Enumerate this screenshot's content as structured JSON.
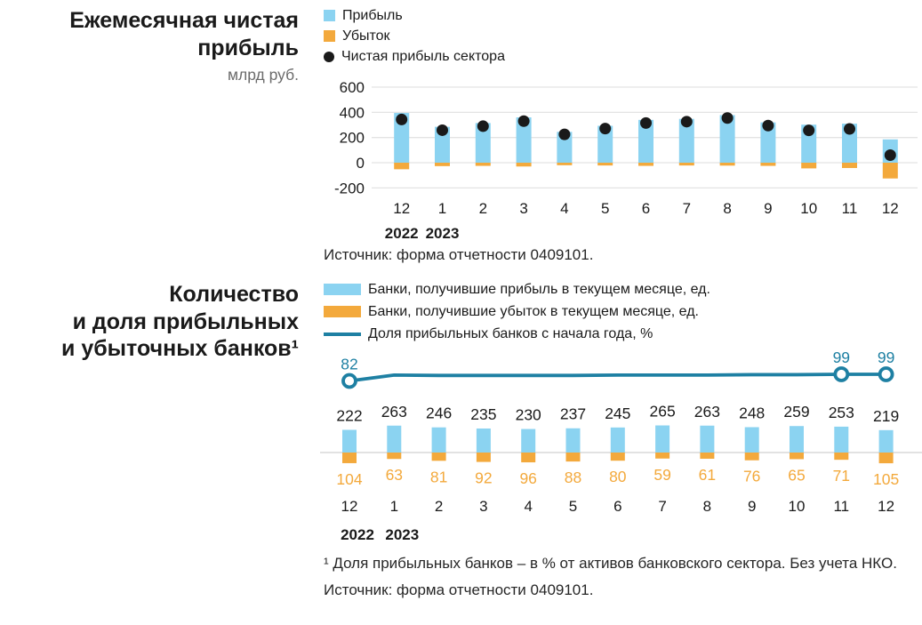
{
  "page": {
    "background": "#FFFFFF"
  },
  "colors": {
    "profit_blue": "#8BD3F1",
    "loss_orange": "#F3A93C",
    "share_line_teal": "#1E80A3",
    "net_dot_black": "#1A1A1A",
    "grid_gray": "#E3E3E3",
    "axis_gray": "#D9D9D9",
    "title_black": "#1A1A1A",
    "muted_gray": "#6B6B6B",
    "text_dark": "#262626"
  },
  "top_section": {
    "title_lines": [
      "Ежемесячная чистая",
      "прибыль"
    ],
    "unit": "млрд руб.",
    "source": "Источник: форма отчетности 0409101."
  },
  "bottom_section": {
    "title_lines": [
      "Количество",
      "и доля прибыльных",
      "и убыточных банков¹"
    ],
    "footnote": "¹ Доля прибыльных банков – в % от активов банковского сектора. Без учета НКО.",
    "source": "Источник: форма отчетности 0409101."
  },
  "chart_data": [
    {
      "id": "monthly-net-profit",
      "type": "bar",
      "title": "Ежемесячная чистая прибыль",
      "ylabel": "млрд руб.",
      "xlabel": "",
      "categories": [
        "12",
        "1",
        "2",
        "3",
        "4",
        "5",
        "6",
        "7",
        "8",
        "9",
        "10",
        "11",
        "12"
      ],
      "year_row": [
        {
          "index": 0,
          "label": "2022"
        },
        {
          "index": 1,
          "label": "2023"
        }
      ],
      "y_ticks": [
        600,
        400,
        200,
        0,
        -200
      ],
      "ylim": [
        -280,
        640
      ],
      "grid": true,
      "legend_position": "top-left",
      "series": [
        {
          "name": "Прибыль",
          "type": "bar",
          "color_key": "profit_blue",
          "values": [
            395,
            285,
            315,
            360,
            245,
            293,
            340,
            348,
            378,
            320,
            302,
            310,
            185
          ]
        },
        {
          "name": "Убыток",
          "type": "bar",
          "color_key": "loss_orange",
          "values": [
            -52,
            -27,
            -25,
            -30,
            -20,
            -22,
            -25,
            -22,
            -23,
            -25,
            -45,
            -42,
            -125
          ]
        },
        {
          "name": "Чистая прибыль сектора",
          "type": "dot",
          "color_key": "net_dot_black",
          "values": [
            343,
            258,
            290,
            330,
            225,
            271,
            315,
            326,
            355,
            295,
            257,
            268,
            60
          ]
        }
      ],
      "source": "Источник: форма отчетности 0409101."
    },
    {
      "id": "banks-count-and-share",
      "type": "bar+line",
      "title": "Количество и доля прибыльных и убыточных банков",
      "xlabel": "",
      "categories": [
        "12",
        "1",
        "2",
        "3",
        "4",
        "5",
        "6",
        "7",
        "8",
        "9",
        "10",
        "11",
        "12"
      ],
      "year_row": [
        {
          "index": 0,
          "label": "2022"
        },
        {
          "index": 1,
          "label": "2023"
        }
      ],
      "grid": false,
      "legend_position": "top-left",
      "series": [
        {
          "name": "Банки, получившие прибыль в текущем месяце, ед.",
          "type": "bar",
          "direction": "up",
          "color_key": "profit_blue",
          "data_labels": true,
          "values": [
            222,
            263,
            246,
            235,
            230,
            237,
            245,
            265,
            263,
            248,
            259,
            253,
            219
          ]
        },
        {
          "name": "Банки, получившие убыток в текущем месяце, ед.",
          "type": "bar",
          "direction": "down",
          "color_key": "loss_orange",
          "data_labels": true,
          "values": [
            104,
            63,
            81,
            92,
            96,
            88,
            80,
            59,
            61,
            76,
            65,
            71,
            105
          ]
        },
        {
          "name": "Доля прибыльных банков с начала года, %",
          "type": "line",
          "color_key": "share_line_teal",
          "values": [
            82,
            97,
            96,
            96,
            96,
            96,
            97,
            97,
            97,
            98,
            98,
            99,
            99
          ],
          "labeled_indices": [
            0,
            11,
            12
          ],
          "visible_labels": [
            "82",
            "99",
            "99"
          ]
        }
      ],
      "footnote": "¹ Доля прибыльных банков – в % от активов банковского сектора. Без учета НКО.",
      "source": "Источник: форма отчетности 0409101."
    }
  ]
}
